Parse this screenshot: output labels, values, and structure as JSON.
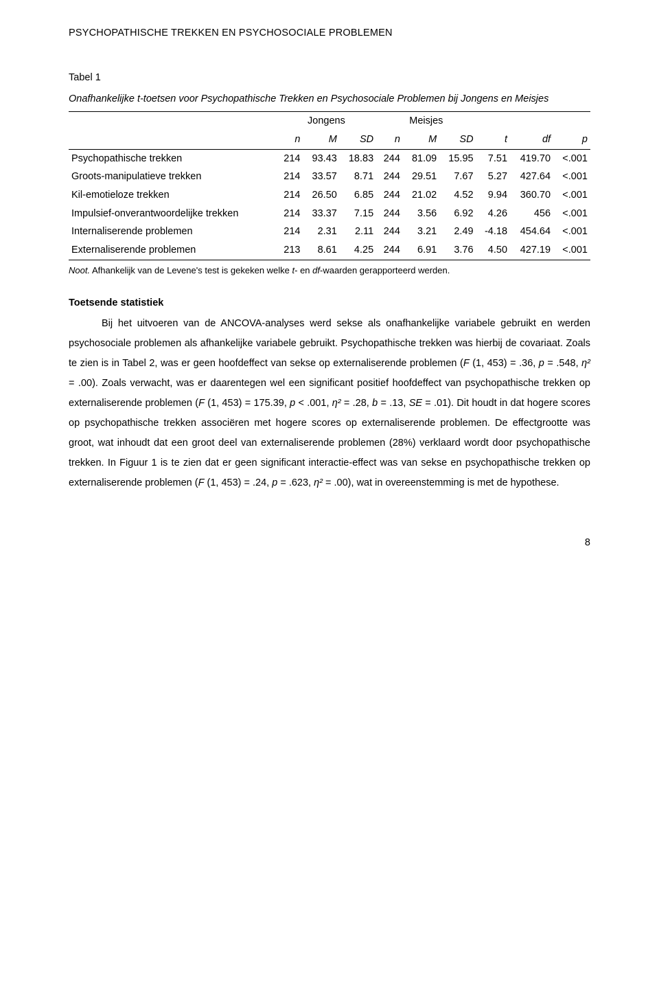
{
  "page": {
    "running_head": "PSYCHOPATHISCHE TREKKEN EN PSYCHOSOCIALE PROBLEMEN",
    "page_number": "8",
    "text_color": "#000000",
    "background_color": "#ffffff"
  },
  "table": {
    "label": "Tabel 1",
    "caption": "Onafhankelijke t-toetsen voor Psychopathische Trekken en Psychosociale Problemen bij Jongens en Meisjes",
    "group_headers": [
      "Jongens",
      "Meisjes"
    ],
    "stat_headers": [
      "n",
      "M",
      "SD",
      "n",
      "M",
      "SD",
      "t",
      "df",
      "p"
    ],
    "rows": [
      {
        "label": "Psychopathische trekken",
        "cells": [
          "214",
          "93.43",
          "18.83",
          "244",
          "81.09",
          "15.95",
          "7.51",
          "419.70",
          "<.001"
        ]
      },
      {
        "label": "Groots-manipulatieve trekken",
        "cells": [
          "214",
          "33.57",
          "8.71",
          "244",
          "29.51",
          "7.67",
          "5.27",
          "427.64",
          "<.001"
        ]
      },
      {
        "label": "Kil-emotieloze trekken",
        "cells": [
          "214",
          "26.50",
          "6.85",
          "244",
          "21.02",
          "4.52",
          "9.94",
          "360.70",
          "<.001"
        ]
      },
      {
        "label": "Impulsief-onverantwoordelijke trekken",
        "cells": [
          "214",
          "33.37",
          "7.15",
          "244",
          "3.56",
          "6.92",
          "4.26",
          "456",
          "<.001"
        ]
      },
      {
        "label": "Internaliserende problemen",
        "cells": [
          "214",
          "2.31",
          "2.11",
          "244",
          "3.21",
          "2.49",
          "-4.18",
          "454.64",
          "<.001"
        ]
      },
      {
        "label": "Externaliserende problemen",
        "cells": [
          "213",
          "8.61",
          "4.25",
          "244",
          "6.91",
          "3.76",
          "4.50",
          "427.19",
          "<.001"
        ]
      }
    ],
    "note_lead": "Noot.",
    "note_text_a": " Afhankelijk van de Levene's test is gekeken welke ",
    "note_t": "t",
    "note_mid": "- en ",
    "note_df": "df",
    "note_text_b": "-waarden gerapporteerd werden."
  },
  "section": {
    "heading": "Toetsende statistiek",
    "p1a": "Bij het uitvoeren van de ANCOVA-analyses werd sekse als onafhankelijke variabele gebruikt en werden psychosociale problemen als afhankelijke variabele gebruikt. Psychopathische trekken was hierbij de covariaat. Zoals te zien is in Tabel 2, was er geen hoofdeffect van sekse op externaliserende problemen (",
    "p1F1": "F",
    "p1b": " (1, 453) = .36, ",
    "p1p1": "p",
    "p1c": " = .548, ",
    "p1eta1": "η²",
    "p1d": " = .00). Zoals verwacht, was er daarentegen wel een significant positief hoofdeffect van psychopathische trekken op externaliserende problemen (",
    "p1F2": "F",
    "p1e": " (1, 453) = 175.39, ",
    "p1p2": "p",
    "p1f": " < .001, ",
    "p1eta2": "η²",
    "p1g": " = .28, ",
    "p1b2": "b",
    "p1h": " = .13, ",
    "p1SE": "SE",
    "p1i": " = .01). Dit houdt in dat hogere scores op psychopathische trekken associëren met hogere scores op externaliserende problemen. De effectgrootte was groot, wat inhoudt dat een groot deel van externaliserende problemen (28%) verklaard wordt door psychopathische trekken. In Figuur 1 is te zien dat er geen significant interactie-effect was van sekse en psychopathische trekken op externaliserende problemen (",
    "p1F3": "F",
    "p1j": " (1, 453) = .24, ",
    "p1p3": "p",
    "p1k": " = .623, ",
    "p1eta3": "η²",
    "p1l": " = .00), wat in overeenstemming is met de hypothese."
  }
}
